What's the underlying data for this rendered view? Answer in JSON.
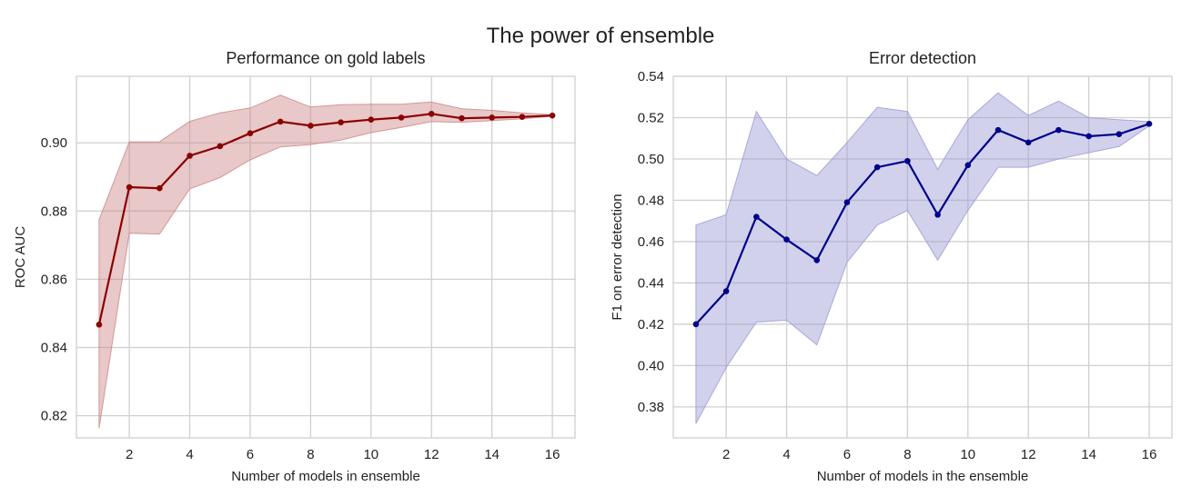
{
  "suptitle": "The power of ensemble",
  "chart_data": [
    {
      "type": "line",
      "title": "Performance on gold labels",
      "xlabel": "Number of models in ensemble",
      "ylabel": "ROC AUC",
      "xlim": [
        0.25,
        16.75
      ],
      "ylim": [
        0.8135,
        0.9195
      ],
      "xticks": [
        2,
        4,
        6,
        8,
        10,
        12,
        14,
        16
      ],
      "yticks": [
        0.82,
        0.84,
        0.86,
        0.88,
        0.9
      ],
      "ytick_labels": [
        "0.82",
        "0.84",
        "0.86",
        "0.88",
        "0.90"
      ],
      "grid": true,
      "color": "#8b0000",
      "band_color": "#cd8585",
      "x": [
        1,
        2,
        3,
        4,
        5,
        6,
        7,
        8,
        9,
        10,
        11,
        12,
        13,
        14,
        15,
        16
      ],
      "series": [
        {
          "values": [
            0.8467,
            0.887,
            0.8867,
            0.8962,
            0.899,
            0.9028,
            0.9062,
            0.905,
            0.906,
            0.9068,
            0.9074,
            0.9085,
            0.9072,
            0.9074,
            0.9076,
            0.908
          ],
          "upper": [
            0.8775,
            0.9003,
            0.9003,
            0.9063,
            0.9088,
            0.9102,
            0.914,
            0.9105,
            0.9112,
            0.9113,
            0.9113,
            0.912,
            0.91,
            0.9095,
            0.9088,
            0.9082
          ],
          "lower": [
            0.8163,
            0.8735,
            0.8732,
            0.8865,
            0.8898,
            0.895,
            0.8988,
            0.8995,
            0.9008,
            0.903,
            0.9045,
            0.9062,
            0.906,
            0.9065,
            0.907,
            0.9078
          ]
        }
      ]
    },
    {
      "type": "line",
      "title": "Error detection",
      "xlabel": "Number of models in the ensemble",
      "ylabel": "F1 on error detection",
      "xlim": [
        0.25,
        16.75
      ],
      "ylim": [
        0.365,
        0.54
      ],
      "xticks": [
        2,
        4,
        6,
        8,
        10,
        12,
        14,
        16
      ],
      "yticks": [
        0.38,
        0.4,
        0.42,
        0.44,
        0.46,
        0.48,
        0.5,
        0.52,
        0.54
      ],
      "ytick_labels": [
        "0.38",
        "0.40",
        "0.42",
        "0.44",
        "0.46",
        "0.48",
        "0.50",
        "0.52",
        "0.54"
      ],
      "grid": true,
      "color": "#00008b",
      "band_color": "#9999d4",
      "x": [
        1,
        2,
        3,
        4,
        5,
        6,
        7,
        8,
        9,
        10,
        11,
        12,
        13,
        14,
        15,
        16
      ],
      "series": [
        {
          "values": [
            0.42,
            0.436,
            0.472,
            0.461,
            0.451,
            0.479,
            0.496,
            0.499,
            0.473,
            0.497,
            0.514,
            0.508,
            0.514,
            0.511,
            0.512,
            0.517
          ],
          "upper": [
            0.468,
            0.473,
            0.523,
            0.5,
            0.492,
            0.508,
            0.525,
            0.523,
            0.495,
            0.519,
            0.532,
            0.521,
            0.528,
            0.52,
            0.519,
            0.518
          ],
          "lower": [
            0.372,
            0.399,
            0.421,
            0.422,
            0.41,
            0.45,
            0.468,
            0.475,
            0.451,
            0.475,
            0.496,
            0.496,
            0.5,
            0.503,
            0.506,
            0.516
          ]
        }
      ]
    }
  ]
}
